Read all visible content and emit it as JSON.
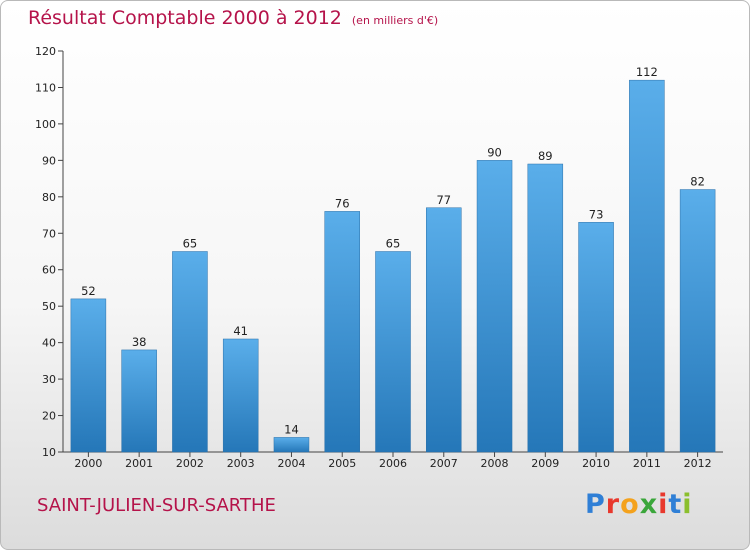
{
  "header": {
    "title": "Résultat Comptable 2000 à 2012",
    "unit": "(en milliers d'€)"
  },
  "footer": {
    "location": "SAINT-JULIEN-SUR-SARTHE",
    "brand": [
      "P",
      "r",
      "o",
      "x",
      "i",
      "t",
      "i"
    ]
  },
  "colors": {
    "title": "#b5134a",
    "bar_top": "#5aaeea",
    "bar_bottom": "#2577b8"
  },
  "chart_data": {
    "type": "bar",
    "title": "Résultat Comptable 2000 à 2012",
    "xlabel": "",
    "ylabel": "",
    "categories": [
      "2000",
      "2001",
      "2002",
      "2003",
      "2004",
      "2005",
      "2006",
      "2007",
      "2008",
      "2009",
      "2010",
      "2011",
      "2012"
    ],
    "values": [
      52,
      38,
      65,
      41,
      14,
      76,
      65,
      77,
      90,
      89,
      73,
      112,
      82
    ],
    "ylim": [
      10,
      120
    ],
    "yticks": [
      10,
      20,
      30,
      40,
      50,
      60,
      70,
      80,
      90,
      100,
      110,
      120
    ],
    "grid": false,
    "legend": "none"
  }
}
